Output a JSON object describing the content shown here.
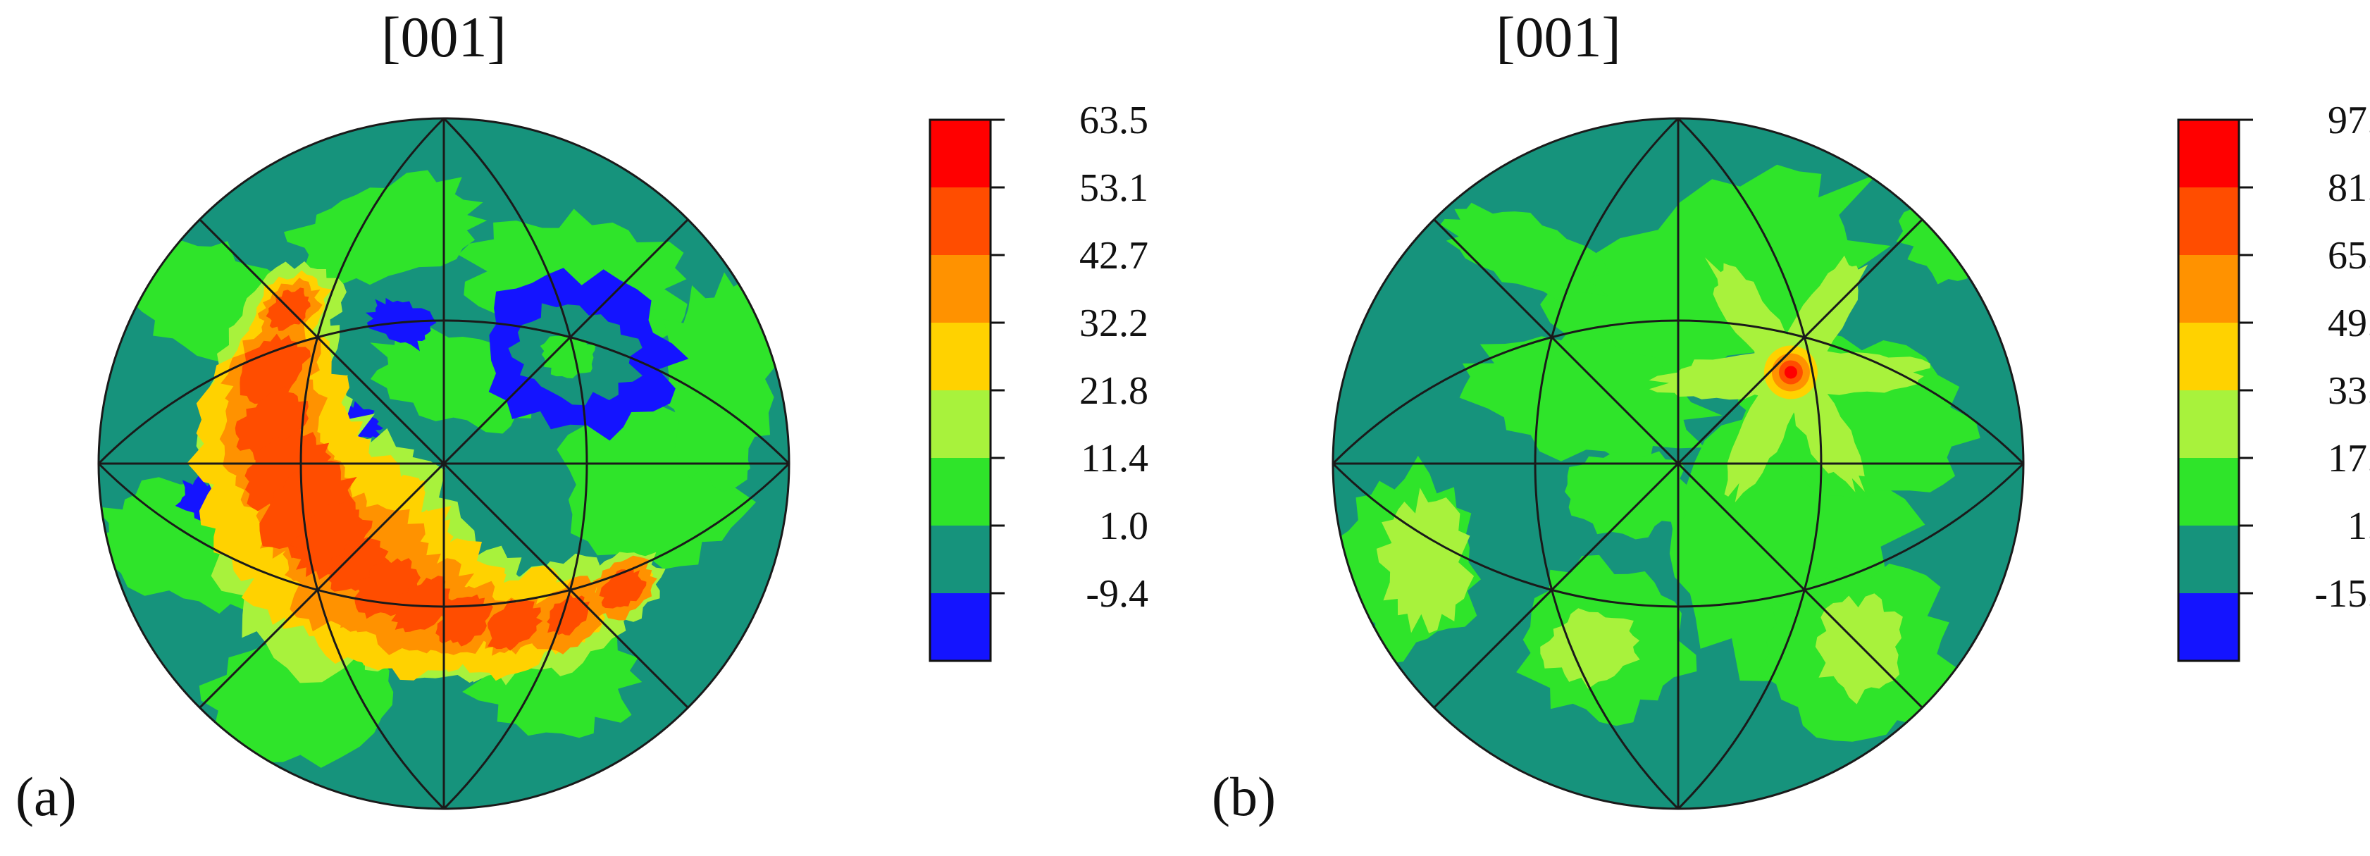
{
  "chart_data": [
    {
      "type": "heatmap",
      "panel_label": "(a)",
      "title": "[001]",
      "projection": "stereographic pole figure",
      "colorbar": {
        "levels": [
          "63.5",
          "53.1",
          "42.7",
          "32.2",
          "21.8",
          "11.4",
          "1.0",
          "-9.4"
        ],
        "level_values": [
          63.5,
          53.1,
          42.7,
          32.2,
          21.8,
          11.4,
          1.0,
          -9.4
        ],
        "colors": [
          "#ff0000",
          "#ff4d00",
          "#ff9200",
          "#ffd200",
          "#a8f23c",
          "#2fe42a",
          "#16937c",
          "#1414ff"
        ]
      },
      "background_level": "1.0",
      "features": [
        {
          "name": "high-density band",
          "level": "53.1",
          "from_angle_deg": 135,
          "to_angle_deg": 325,
          "radius_fraction": 0.62
        },
        {
          "name": "low-density ring",
          "level": "-9.4",
          "center_angle_deg": 40,
          "radius_fraction": 0.5
        }
      ]
    },
    {
      "type": "heatmap",
      "panel_label": "(b)",
      "title": "[001]",
      "projection": "stereographic pole figure",
      "colorbar": {
        "levels": [
          "97.3",
          "81.2",
          "65.2",
          "49.1",
          "33.1",
          "17.0",
          "1.0",
          "-15.0"
        ],
        "level_values": [
          97.3,
          81.2,
          65.2,
          49.1,
          33.1,
          17.0,
          1.0,
          -15.0
        ],
        "colors": [
          "#ff0000",
          "#ff4d00",
          "#ff9200",
          "#ffd200",
          "#a8f23c",
          "#2fe42a",
          "#16937c",
          "#1414ff"
        ]
      },
      "background_level": "-15.0",
      "features": [
        {
          "name": "peak",
          "level": "97.3",
          "center_angle_deg": 39,
          "radius_fraction": 0.42
        }
      ]
    }
  ]
}
